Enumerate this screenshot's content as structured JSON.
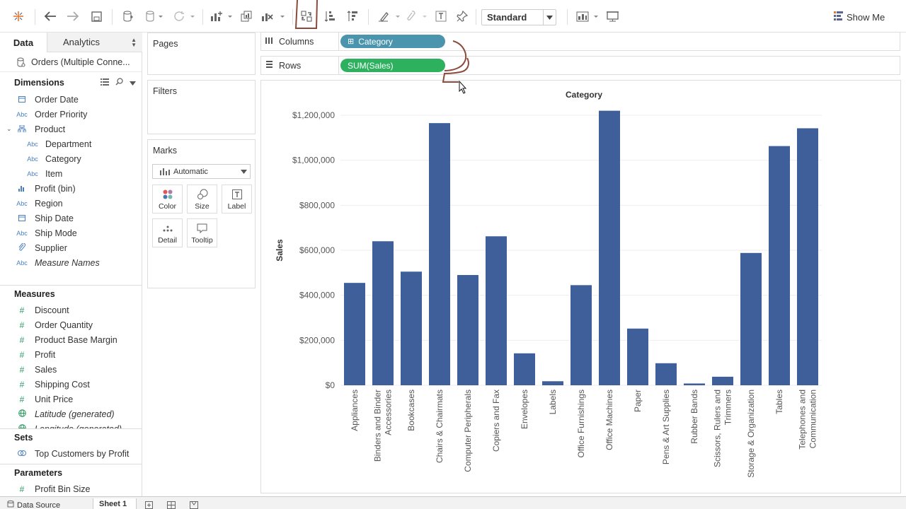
{
  "toolbar": {
    "view_mode": "Standard",
    "show_me_label": "Show Me"
  },
  "data_pane": {
    "tab_data": "Data",
    "tab_analytics": "Analytics",
    "datasource": "Orders (Multiple Conne...",
    "dimensions_header": "Dimensions",
    "dimensions": [
      {
        "label": "Order Date",
        "icon": "calendar-icon"
      },
      {
        "label": "Order Priority",
        "icon": "Abc"
      },
      {
        "label": "Product",
        "icon": "hierarchy-icon"
      },
      {
        "label": "Department",
        "icon": "Abc"
      },
      {
        "label": "Category",
        "icon": "Abc"
      },
      {
        "label": "Item",
        "icon": "Abc"
      },
      {
        "label": "Profit (bin)",
        "icon": "bin-icon"
      },
      {
        "label": "Region",
        "icon": "Abc"
      },
      {
        "label": "Ship Date",
        "icon": "calendar-icon"
      },
      {
        "label": "Ship Mode",
        "icon": "Abc"
      },
      {
        "label": "Supplier",
        "icon": "paperclip-icon"
      },
      {
        "label": "Measure Names",
        "icon": "Abc"
      }
    ],
    "measures_header": "Measures",
    "measures": [
      {
        "label": "Discount",
        "icon": "#"
      },
      {
        "label": "Order Quantity",
        "icon": "#"
      },
      {
        "label": "Product Base Margin",
        "icon": "#"
      },
      {
        "label": "Profit",
        "icon": "#"
      },
      {
        "label": "Sales",
        "icon": "#"
      },
      {
        "label": "Shipping Cost",
        "icon": "#"
      },
      {
        "label": "Unit Price",
        "icon": "#"
      },
      {
        "label": "Latitude (generated)",
        "icon": "globe-icon"
      },
      {
        "label": "Longitude (generated)",
        "icon": "globe-icon"
      }
    ],
    "sets_header": "Sets",
    "sets": [
      {
        "label": "Top Customers by Profit",
        "icon": "set-icon"
      }
    ],
    "parameters_header": "Parameters",
    "parameters": [
      {
        "label": "Profit Bin Size",
        "icon": "#"
      }
    ]
  },
  "cards": {
    "pages_title": "Pages",
    "filters_title": "Filters",
    "marks_title": "Marks",
    "marks_type": "Automatic",
    "mark_buttons": {
      "color": "Color",
      "size": "Size",
      "label": "Label",
      "detail": "Detail",
      "tooltip": "Tooltip"
    }
  },
  "shelves": {
    "columns_label": "Columns",
    "rows_label": "Rows",
    "columns_pill": "Category",
    "rows_pill": "SUM(Sales)"
  },
  "bottom_tabs": {
    "data_source": "Data Source",
    "sheet": "Sheet 1"
  },
  "colors": {
    "bar": "#3e5f9a",
    "columns_pill": "#4a95ad",
    "rows_pill": "#2db15f",
    "annotation": "#8b4a3c"
  },
  "chart_data": {
    "type": "bar",
    "title": "Category",
    "ylabel": "Sales",
    "xlabel": "",
    "ylim": [
      0,
      1200000
    ],
    "yticks": [
      "$0",
      "$200,000",
      "$400,000",
      "$600,000",
      "$800,000",
      "$1,000,000",
      "$1,200,000"
    ],
    "categories": [
      "Appliances",
      "Binders and Binder Accessories",
      "Bookcases",
      "Chairs & Chairmats",
      "Computer Peripherals",
      "Copiers and Fax",
      "Envelopes",
      "Labels",
      "Office Furnishings",
      "Office Machines",
      "Paper",
      "Pens & Art Supplies",
      "Rubber Bands",
      "Scissors, Rulers and Trimmers",
      "Storage & Organization",
      "Tables",
      "Telephones and Communication"
    ],
    "category_lines": [
      [
        "Appliances"
      ],
      [
        "Binders and Binder",
        "Accessories"
      ],
      [
        "Bookcases"
      ],
      [
        "Chairs & Chairmats"
      ],
      [
        "Computer Peripherals"
      ],
      [
        "Copiers and Fax"
      ],
      [
        "Envelopes"
      ],
      [
        "Labels"
      ],
      [
        "Office Furnishings"
      ],
      [
        "Office Machines"
      ],
      [
        "Paper"
      ],
      [
        "Pens & Art Supplies"
      ],
      [
        "Rubber Bands"
      ],
      [
        "Scissors, Rulers and",
        "Trimmers"
      ],
      [
        "Storage & Organization"
      ],
      [
        "Tables"
      ],
      [
        "Telephones and",
        "Communication"
      ]
    ],
    "values": [
      455000,
      640000,
      505000,
      1165000,
      490000,
      662000,
      142000,
      18000,
      445000,
      1220000,
      252000,
      98000,
      8000,
      38000,
      588000,
      1063000,
      1142000
    ],
    "grid": true
  }
}
